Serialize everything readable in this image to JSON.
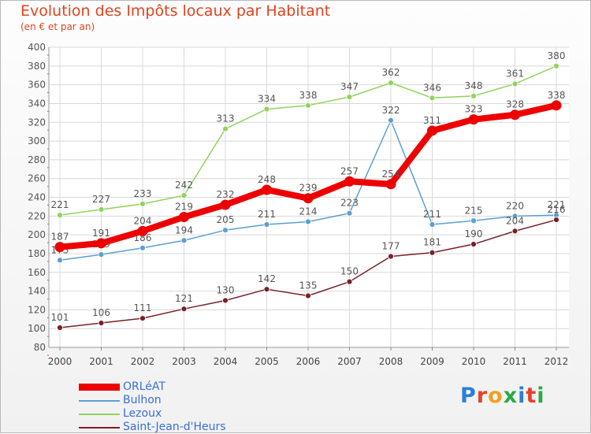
{
  "header": {
    "title": "Evolution des Impôts locaux par Habitant",
    "subtitle": "(en € et par an)"
  },
  "logo": {
    "text": "Proxiti",
    "colors": [
      "#2a7fd4",
      "#e8402a",
      "#f0a020",
      "#2aa84a",
      "#2a7fd4",
      "#e8402a",
      "#2aa84a"
    ]
  },
  "chart_data": {
    "type": "line",
    "x": [
      "2000",
      "2001",
      "2002",
      "2003",
      "2004",
      "2005",
      "2006",
      "2007",
      "2008",
      "2009",
      "2010",
      "2011",
      "2012"
    ],
    "ylim": [
      80,
      400
    ],
    "yticks": [
      80,
      100,
      120,
      140,
      160,
      180,
      200,
      220,
      240,
      260,
      280,
      300,
      320,
      340,
      360,
      380,
      400
    ],
    "grid": true,
    "legend_position": "bottom-left",
    "series": [
      {
        "name": "Lezoux",
        "color": "#8fd45a",
        "values": [
          221,
          227,
          233,
          242,
          313,
          334,
          338,
          347,
          362,
          346,
          348,
          361,
          380
        ],
        "labels": [
          "221",
          "227",
          "233",
          "242",
          "313",
          "334",
          "338",
          "347",
          "362",
          "346",
          "348",
          "361",
          "380"
        ]
      },
      {
        "name": "Bulhon",
        "color": "#5a9fd4",
        "values": [
          173,
          179,
          186,
          194,
          205,
          211,
          214,
          223,
          322,
          211,
          215,
          220,
          221
        ],
        "labels": [
          "173",
          "179",
          "186",
          "194",
          "205",
          "211",
          "214",
          "223",
          "322",
          "211",
          "215",
          "220",
          "221"
        ]
      },
      {
        "name": "Saint-Jean-d'Heurs",
        "color": "#7a1f28",
        "values": [
          101,
          106,
          111,
          121,
          130,
          142,
          135,
          150,
          177,
          181,
          190,
          204,
          216
        ],
        "labels": [
          "101",
          "106",
          "111",
          "121",
          "130",
          "142",
          "135",
          "150",
          "177",
          "181",
          "190",
          "204",
          "216"
        ]
      },
      {
        "name": "ORLéAT",
        "color": "#ee0000",
        "values": [
          187,
          191,
          204,
          219,
          232,
          248,
          239,
          257,
          254,
          311,
          323,
          328,
          338
        ],
        "labels": [
          "187",
          "191",
          "204",
          "219",
          "232",
          "248",
          "239",
          "257",
          "254",
          "311",
          "323",
          "328",
          "338"
        ]
      }
    ],
    "legend_order": [
      "ORLéAT",
      "Bulhon",
      "Lezoux",
      "Saint-Jean-d'Heurs"
    ]
  }
}
